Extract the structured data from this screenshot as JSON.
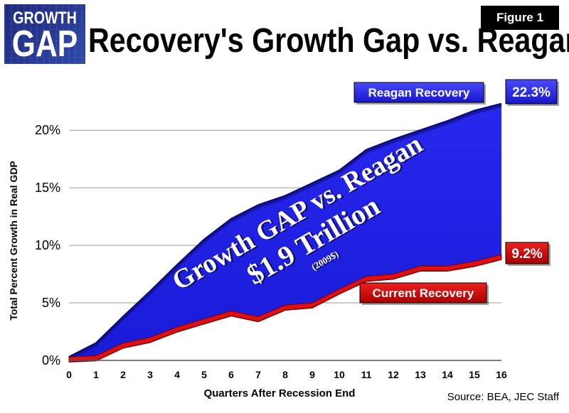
{
  "header": {
    "logo_line1": "GROWTH",
    "logo_line2": "GAP",
    "figure_label": "Figure 1",
    "title": "Recovery's Growth Gap vs. Reagan"
  },
  "footer": {
    "source": "Source: BEA, JEC Staff"
  },
  "colors": {
    "reagan": "#2222e6",
    "reagan_dark": "#0b0b7a",
    "current": "#e01010",
    "current_dark": "#7a0000"
  },
  "chart_data": {
    "type": "area",
    "xlabel": "Quarters After Recession End",
    "ylabel": "Total Percent Growth in Real GDP",
    "xlim": [
      0,
      16
    ],
    "ylim": [
      0,
      22.3
    ],
    "x": [
      0,
      1,
      2,
      3,
      4,
      5,
      6,
      7,
      8,
      9,
      10,
      11,
      12,
      13,
      14,
      15,
      16
    ],
    "y_ticks": [
      "0%",
      "5%",
      "10%",
      "15%",
      "20%"
    ],
    "y_tick_values": [
      0,
      5,
      10,
      15,
      20
    ],
    "grid": true,
    "series": [
      {
        "name": "Reagan Recovery",
        "values": [
          0.3,
          1.5,
          3.8,
          6.0,
          8.3,
          10.5,
          12.3,
          13.5,
          14.3,
          15.4,
          16.5,
          18.3,
          19.2,
          20.0,
          20.8,
          21.7,
          22.3
        ],
        "end_label": "22.3%"
      },
      {
        "name": "Current Recovery",
        "values": [
          0.3,
          0.4,
          1.5,
          2.0,
          2.9,
          3.6,
          4.3,
          3.8,
          4.8,
          5.0,
          6.2,
          7.3,
          7.5,
          8.2,
          8.2,
          8.6,
          9.2
        ],
        "end_label": "9.2%"
      }
    ],
    "annotation": {
      "line1": "Growth GAP vs. Reagan",
      "line2": "$1.9 Trillion",
      "line3": "(2009$)"
    }
  }
}
